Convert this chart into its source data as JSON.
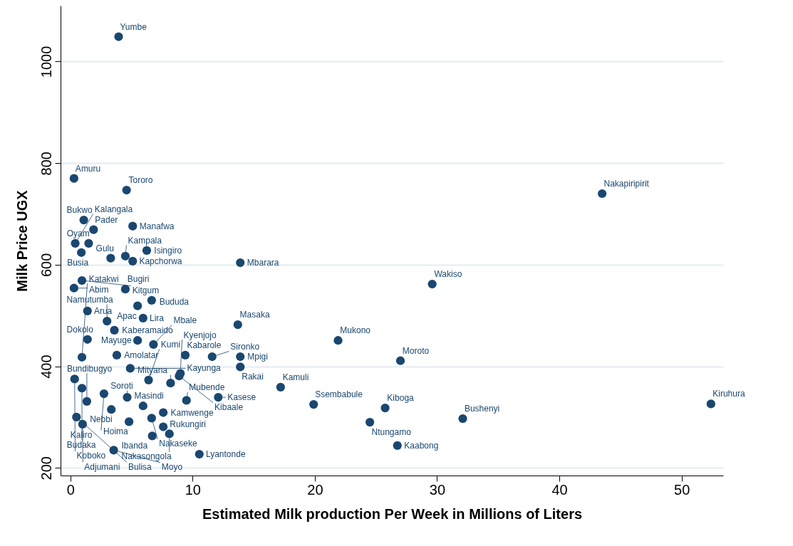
{
  "chart_data": {
    "type": "scatter",
    "xlabel": "Estimated Milk production Per Week in Millions of Liters",
    "ylabel": "Milk  Price UGX",
    "xlim": [
      -0.8,
      53.4
    ],
    "ylim": [
      185,
      1110
    ],
    "xticks": [
      0,
      10,
      20,
      30,
      40,
      50
    ],
    "yticks": [
      200,
      400,
      600,
      800,
      {
        "value": 1000,
        "label": "1000"
      }
    ],
    "grid": "y",
    "marker": "circle",
    "series": [
      {
        "color": "#1a476f",
        "x": [
          3.95,
          0.3,
          4.6,
          43.5,
          1.1,
          1.9,
          5.1,
          0.4,
          1.5,
          0.9,
          6.25,
          3.3,
          4.5,
          5.1,
          13.9,
          29.6,
          0.95,
          0.3,
          4.5,
          6.65,
          5.5,
          1.4,
          5.95,
          3.0,
          3.6,
          13.7,
          21.9,
          27.0,
          1.4,
          5.5,
          6.8,
          9.4,
          11.6,
          13.9,
          13.9,
          17.2,
          19.9,
          25.75,
          32.1,
          52.4,
          24.5,
          26.75,
          12.1,
          9.5,
          8.2,
          7.6,
          7.6,
          6.65,
          4.8,
          8.1,
          6.7,
          10.55,
          3.55,
          1.0,
          0.5,
          3.35,
          5.95,
          1.35,
          4.65,
          2.75,
          0.95,
          0.35,
          0.95,
          3.8,
          4.9,
          9.0,
          8.9,
          6.4
        ],
        "values": [
          1049,
          770,
          747,
          740,
          688,
          669,
          676,
          642,
          642,
          624,
          628,
          613,
          617,
          607,
          604,
          562,
          569,
          554,
          552,
          530,
          519,
          509,
          495,
          489,
          471,
          482,
          451,
          411,
          453,
          451,
          443,
          422,
          419,
          419,
          399,
          359,
          325,
          318,
          297,
          326,
          290,
          244,
          339,
          333,
          367,
          281,
          309,
          298,
          291,
          267,
          263,
          227,
          235,
          286,
          300,
          315,
          322,
          331,
          339,
          346,
          357,
          375,
          418,
          422,
          396,
          386,
          381,
          373
        ]
      }
    ],
    "annotations": [
      {
        "text": "Yumbe",
        "x": 3.95,
        "y": 1049
      },
      {
        "text": "Amuru",
        "x": 0.3,
        "y": 770
      },
      {
        "text": "Tororo",
        "x": 4.6,
        "y": 747
      },
      {
        "text": "Nakapiripirit",
        "x": 43.5,
        "y": 740
      },
      {
        "text": "Bukwo",
        "x": 1.1,
        "y": 688
      },
      {
        "text": "Pader",
        "x": 1.9,
        "y": 669
      },
      {
        "text": "Manafwa",
        "x": 5.1,
        "y": 676
      },
      {
        "text": "Kalangala",
        "x": 0.4,
        "y": 642
      },
      {
        "text": "Oyam",
        "x": 1.5,
        "y": 642
      },
      {
        "text": "Busia",
        "x": 0.9,
        "y": 624
      },
      {
        "text": "Isingiro",
        "x": 6.25,
        "y": 628
      },
      {
        "text": "Gulu",
        "x": 3.3,
        "y": 613
      },
      {
        "text": "Kampala",
        "x": 4.5,
        "y": 617
      },
      {
        "text": "Kapchorwa",
        "x": 5.1,
        "y": 607
      },
      {
        "text": "Mbarara",
        "x": 13.9,
        "y": 604
      },
      {
        "text": "Wakiso",
        "x": 29.6,
        "y": 562
      },
      {
        "text": "Kitgum",
        "x": 0.95,
        "y": 569
      },
      {
        "text": "Abim",
        "x": 0.3,
        "y": 554
      },
      {
        "text": "Bugiri",
        "x": 4.5,
        "y": 552
      },
      {
        "text": "Bududa",
        "x": 6.65,
        "y": 530
      },
      {
        "text": "Apac",
        "x": 5.5,
        "y": 519
      },
      {
        "text": "Arua",
        "x": 1.4,
        "y": 509
      },
      {
        "text": "Lira",
        "x": 5.95,
        "y": 495
      },
      {
        "text": "Namutumba",
        "x": 3.0,
        "y": 489
      },
      {
        "text": "Kaberamaido",
        "x": 3.6,
        "y": 471
      },
      {
        "text": "Masaka",
        "x": 13.7,
        "y": 482
      },
      {
        "text": "Mukono",
        "x": 21.9,
        "y": 451
      },
      {
        "text": "Moroto",
        "x": 27.0,
        "y": 411
      },
      {
        "text": "Dokolo",
        "x": 1.4,
        "y": 453
      },
      {
        "text": "Mayuge",
        "x": 5.5,
        "y": 451
      },
      {
        "text": "Mbale",
        "x": 6.8,
        "y": 443
      },
      {
        "text": "Kabarole",
        "x": 9.4,
        "y": 422
      },
      {
        "text": "Sironko",
        "x": 11.6,
        "y": 419
      },
      {
        "text": "Mpigi",
        "x": 13.9,
        "y": 419
      },
      {
        "text": "Rakai",
        "x": 13.9,
        "y": 399
      },
      {
        "text": "Kamuli",
        "x": 17.2,
        "y": 359
      },
      {
        "text": "Ssembabule",
        "x": 19.9,
        "y": 325
      },
      {
        "text": "Kiboga",
        "x": 25.75,
        "y": 318
      },
      {
        "text": "Bushenyi",
        "x": 32.1,
        "y": 297
      },
      {
        "text": "Kiruhura",
        "x": 52.4,
        "y": 326
      },
      {
        "text": "Ntungamo",
        "x": 24.5,
        "y": 290
      },
      {
        "text": "Kaabong",
        "x": 26.75,
        "y": 244
      },
      {
        "text": "Kasese",
        "x": 12.1,
        "y": 339
      },
      {
        "text": "Mubende",
        "x": 9.5,
        "y": 333
      },
      {
        "text": "Mityana",
        "x": 8.2,
        "y": 367
      },
      {
        "text": "Rukungiri",
        "x": 7.6,
        "y": 281
      },
      {
        "text": "Kamwenge",
        "x": 7.6,
        "y": 309
      },
      {
        "text": "Nakaseke",
        "x": 6.65,
        "y": 298
      },
      {
        "text": "Hoima",
        "x": 4.8,
        "y": 291
      },
      {
        "text": "Nakasongola",
        "x": 8.1,
        "y": 267
      },
      {
        "text": "Ibanda",
        "x": 6.7,
        "y": 263
      },
      {
        "text": "Lyantonde",
        "x": 10.55,
        "y": 227
      },
      {
        "text": "Moyo",
        "x": 3.55,
        "y": 235
      },
      {
        "text": "Adjumani",
        "x": 1.0,
        "y": 286
      },
      {
        "text": "Bulisa",
        "x": 0.5,
        "y": 300
      },
      {
        "text": "Nebbi",
        "x": 3.35,
        "y": 315
      },
      {
        "text": "Masindi",
        "x": 5.95,
        "y": 322
      },
      {
        "text": "Bundibugyo",
        "x": 1.35,
        "y": 331
      },
      {
        "text": "Soroti",
        "x": 4.65,
        "y": 339
      },
      {
        "text": "Kaliro",
        "x": 2.75,
        "y": 346
      },
      {
        "text": "Budaka",
        "x": 0.95,
        "y": 357
      },
      {
        "text": "Koboko",
        "x": 0.35,
        "y": 375
      },
      {
        "text": "Katakwi",
        "x": 0.95,
        "y": 418
      },
      {
        "text": "Amolatar",
        "x": 3.8,
        "y": 422
      },
      {
        "text": "Kayunga",
        "x": 4.9,
        "y": 396
      },
      {
        "text": "Kyenjojo",
        "x": 9.0,
        "y": 386
      },
      {
        "text": "Kibaale",
        "x": 8.9,
        "y": 381
      },
      {
        "text": "Kumi",
        "x": 6.4,
        "y": 373
      }
    ]
  }
}
